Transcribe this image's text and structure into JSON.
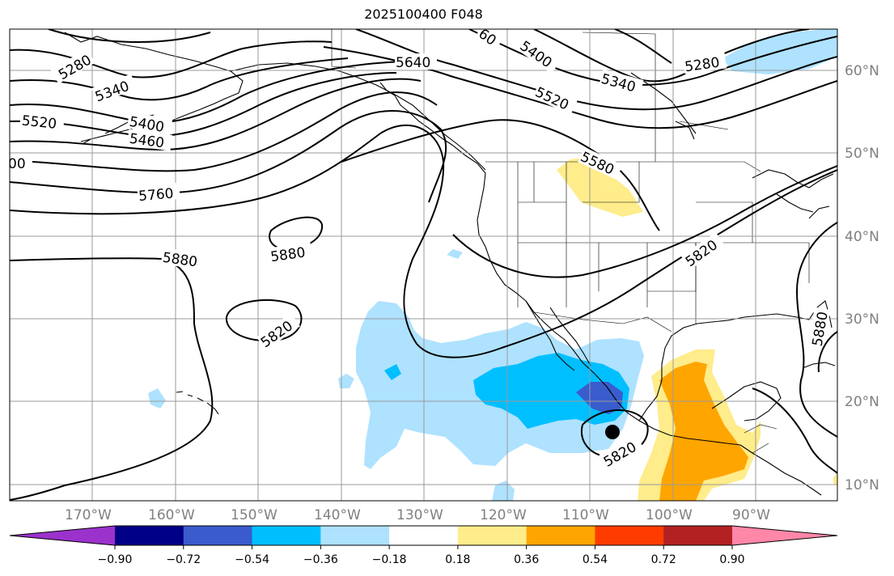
{
  "title": "2025100400 F048",
  "map": {
    "lon_labels": [
      "170°W",
      "160°W",
      "150°W",
      "140°W",
      "130°W",
      "120°W",
      "110°W",
      "100°W",
      "90°W"
    ],
    "lat_labels": [
      "60°N",
      "50°N",
      "40°N",
      "30°N",
      "20°N",
      "10°N"
    ],
    "contour_labels": [
      "5280",
      "5340",
      "5400",
      "5460",
      "5520",
      "5640",
      "5760",
      "5880",
      "5880",
      "5820",
      "5820",
      "5580",
      "5820",
      "5400",
      "5520",
      "5340",
      "5280",
      "5880",
      "60",
      "00"
    ],
    "marker": "low-center-marker"
  },
  "colorbar": {
    "colors": [
      "#9b32cc",
      "#000087",
      "#3a5ccc",
      "#00bfff",
      "#aee2ff",
      "#ffffff",
      "#ffec8b",
      "#ffa500",
      "#ff3c00",
      "#b22222",
      "#ff87a8"
    ],
    "ticks": [
      "−0.90",
      "−0.72",
      "−0.54",
      "−0.36",
      "−0.18",
      "0.18",
      "0.36",
      "0.54",
      "0.72",
      "0.90"
    ]
  }
}
